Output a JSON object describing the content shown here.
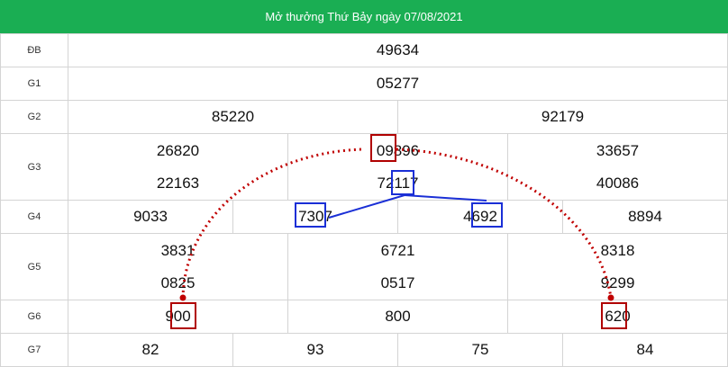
{
  "header": {
    "title": "Mở thưởng Thứ Bảy ngày 07/08/2021"
  },
  "prizes": {
    "db": {
      "label": "ĐB",
      "numbers": [
        "49634"
      ]
    },
    "g1": {
      "label": "G1",
      "numbers": [
        "05277"
      ]
    },
    "g2": {
      "label": "G2",
      "numbers": [
        "85220",
        "92179"
      ]
    },
    "g3": {
      "label": "G3",
      "numbers": [
        "26820",
        "09896",
        "33657",
        "22163",
        "72117",
        "40086"
      ]
    },
    "g4": {
      "label": "G4",
      "numbers": [
        "9033",
        "7307",
        "4692",
        "8894"
      ]
    },
    "g5": {
      "label": "G5",
      "numbers": [
        "3831",
        "6721",
        "8318",
        "0825",
        "0517",
        "9299"
      ]
    },
    "g6": {
      "label": "G6",
      "numbers": [
        "900",
        "800",
        "620"
      ]
    },
    "g7": {
      "label": "G7",
      "numbers": [
        "82",
        "93",
        "75",
        "84"
      ]
    }
  },
  "colors": {
    "header": "#1aae53",
    "special": "#e41b1b",
    "red_marker": "#b00000",
    "blue_marker": "#1a2fd6"
  }
}
